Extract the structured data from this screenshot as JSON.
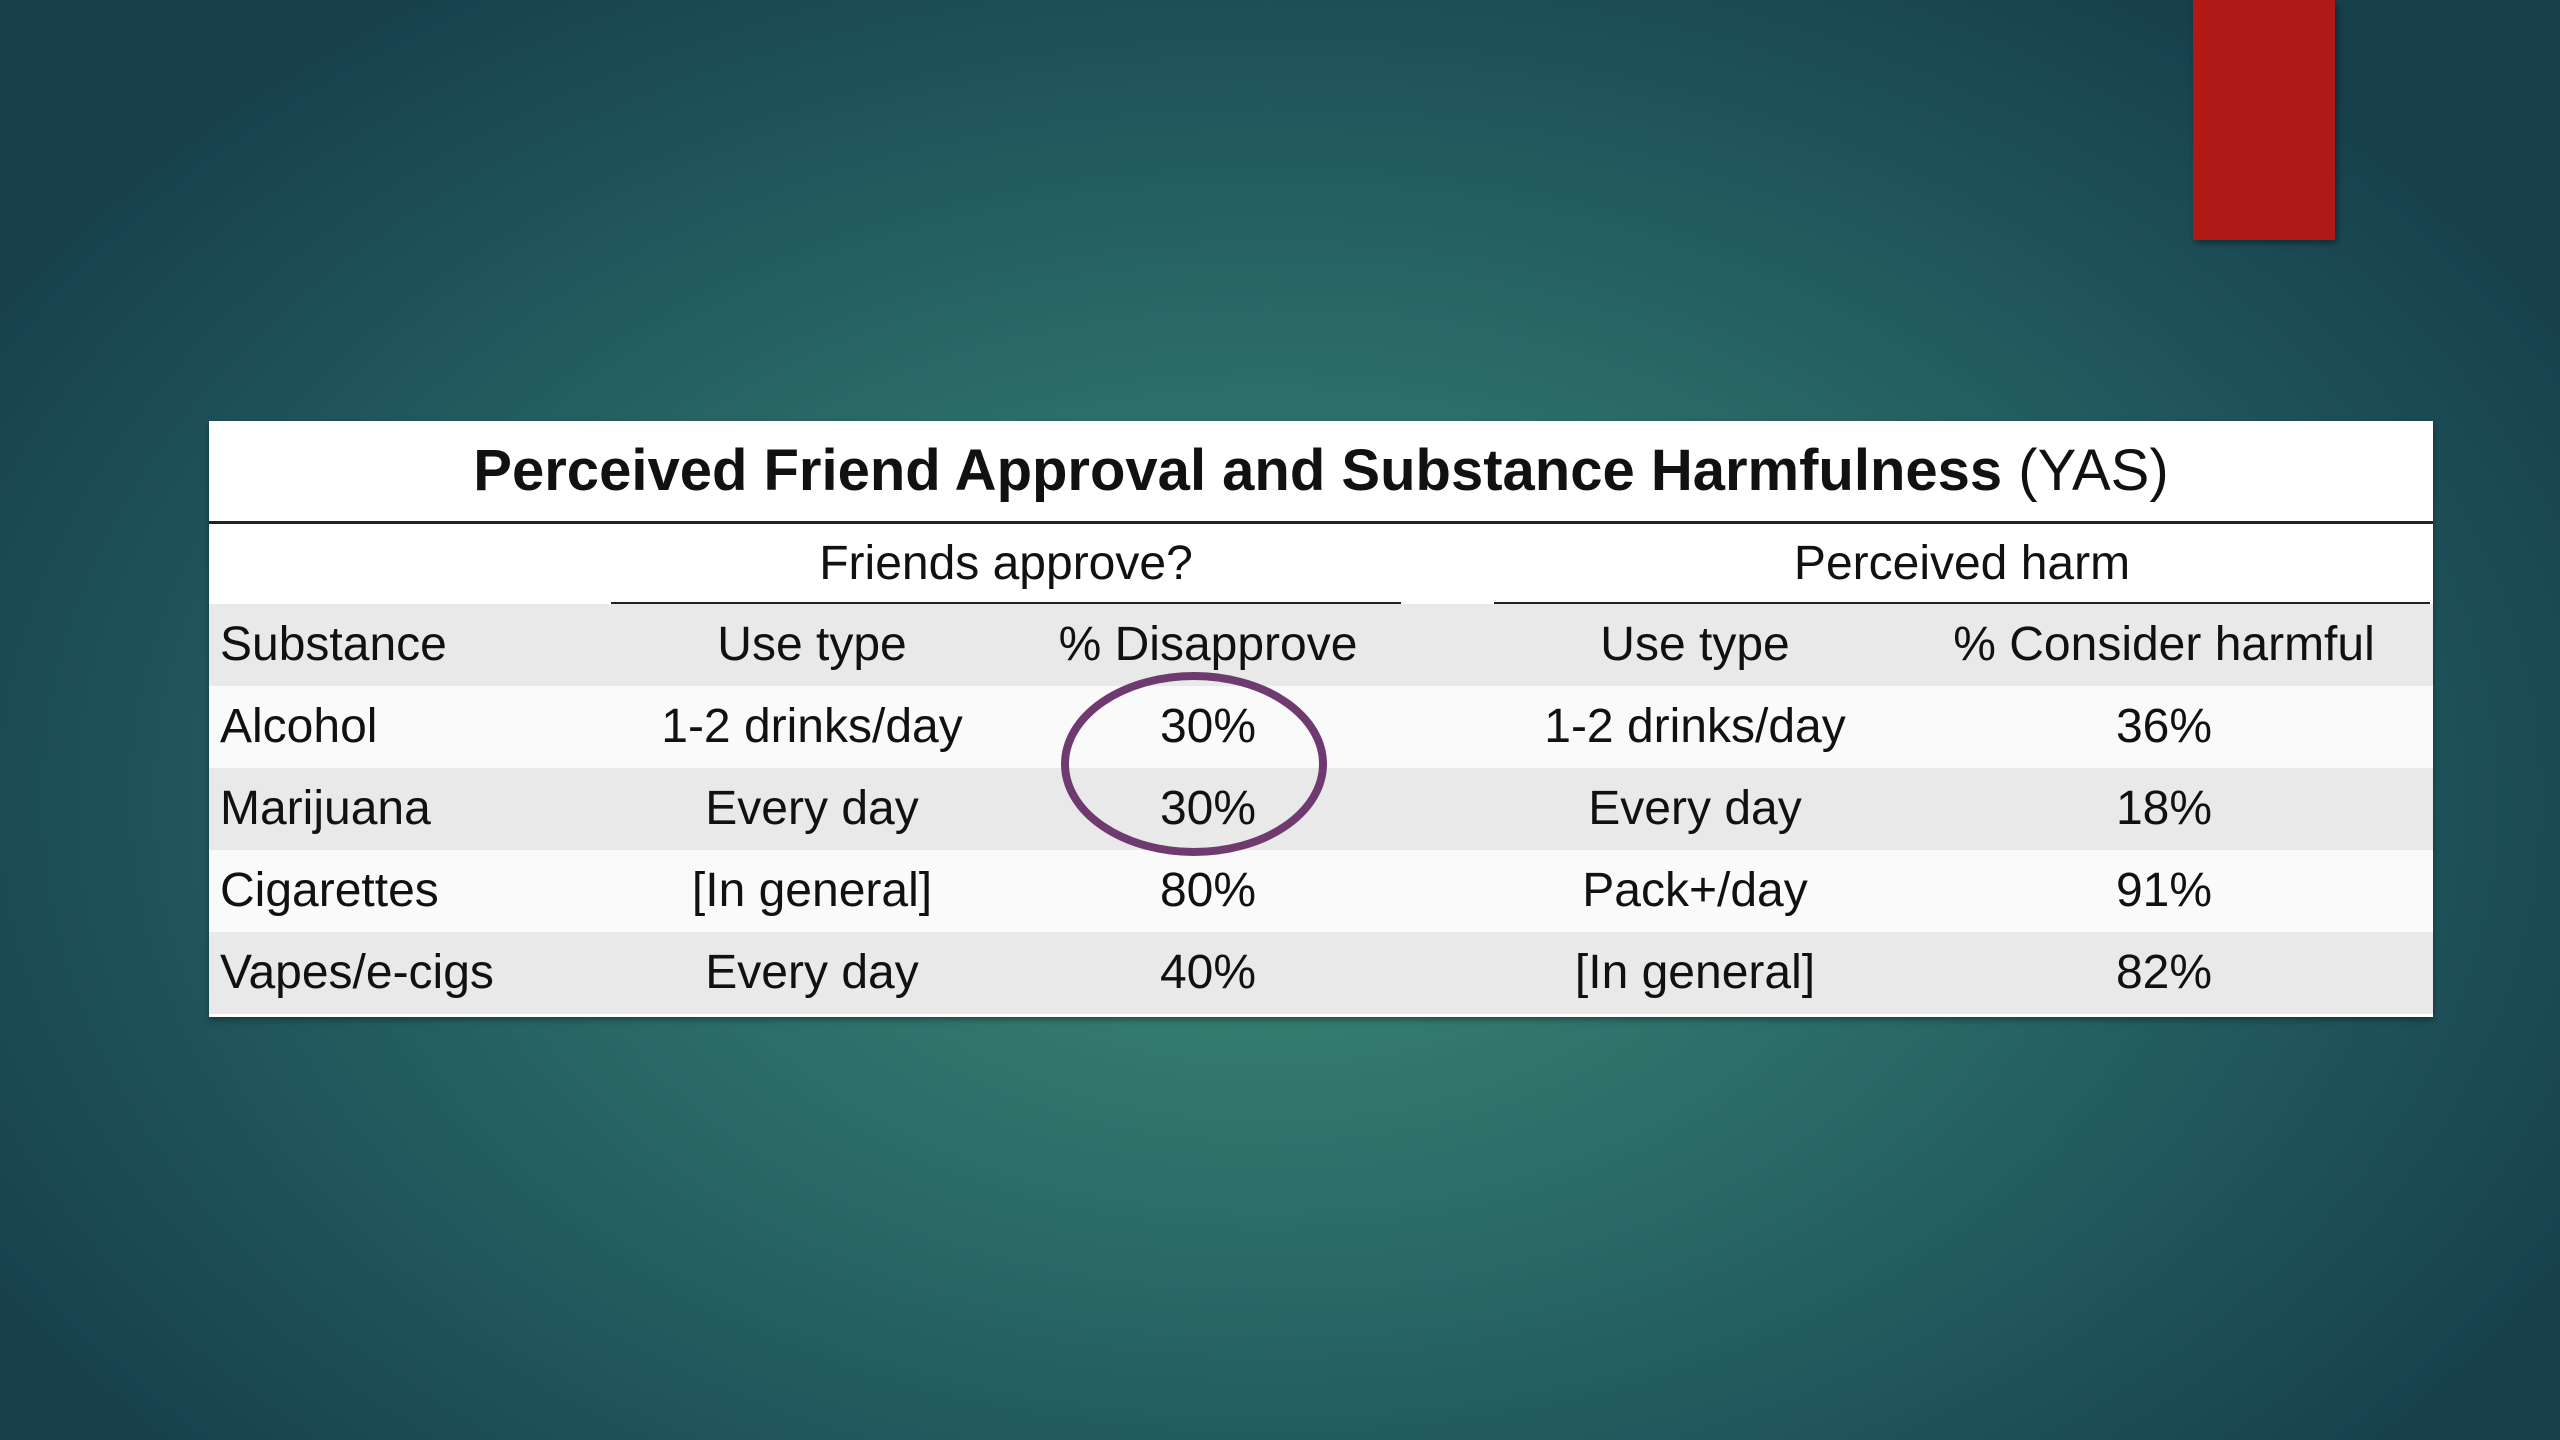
{
  "table": {
    "title": "Perceived Friend Approval and Substance Harmfulness",
    "title_suffix": "(YAS)",
    "groups": [
      "Friends approve?",
      "Perceived harm"
    ],
    "columns": [
      "Substance",
      "Use type",
      "% Disapprove",
      "Use type",
      "% Consider harmful"
    ],
    "rows": [
      [
        "Alcohol",
        "1-2 drinks/day",
        "30%",
        "1-2 drinks/day",
        "36%"
      ],
      [
        "Marijuana",
        "Every day",
        "30%",
        "Every day",
        "18%"
      ],
      [
        "Cigarettes",
        "[In general]",
        "80%",
        "Pack+/day",
        "91%"
      ],
      [
        "Vapes/e-cigs",
        "Every day",
        "40%",
        "[In general]",
        "82%"
      ]
    ]
  }
}
